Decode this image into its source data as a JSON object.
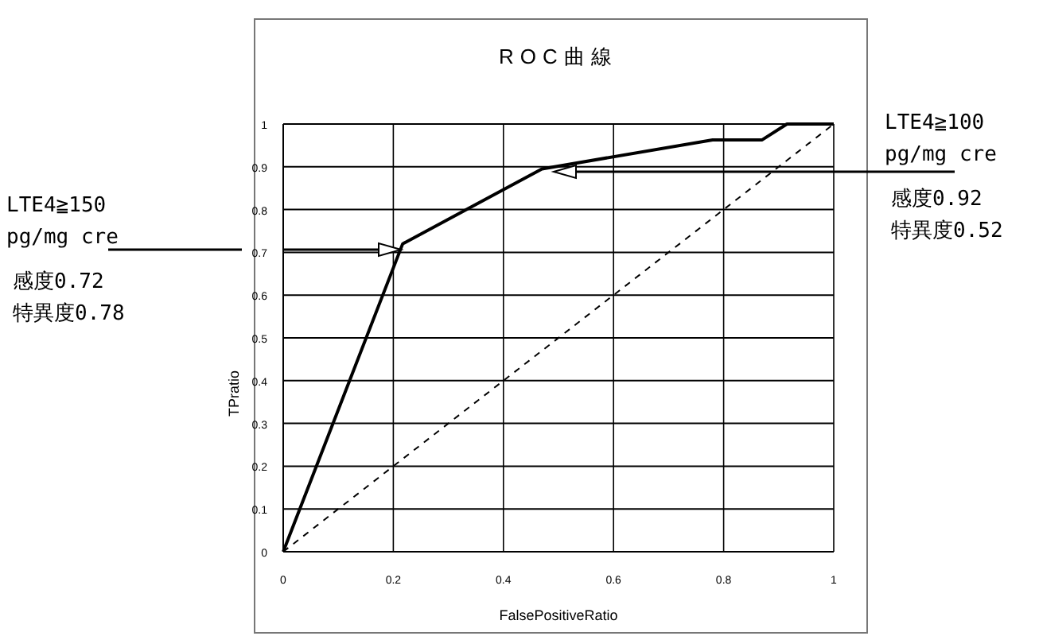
{
  "chart_data": {
    "type": "line",
    "title": "ROC曲線",
    "xlabel": "FalsePositiveRatio",
    "ylabel": "TPratio",
    "xlim": [
      0,
      1
    ],
    "ylim": [
      0,
      1
    ],
    "xticks": [
      0,
      0.2,
      0.4,
      0.6,
      0.8,
      1
    ],
    "yticks": [
      0,
      0.1,
      0.2,
      0.3,
      0.4,
      0.5,
      0.6,
      0.7,
      0.8,
      0.9,
      1
    ],
    "grid": true,
    "marker": "none",
    "series": [
      {
        "color": "#000000",
        "x": [
          0,
          0.217,
          0.47,
          0.78,
          0.87,
          0.915,
          1
        ],
        "values": [
          0,
          0.72,
          0.895,
          0.963,
          0.963,
          1,
          1
        ],
        "line_style": "solid"
      },
      {
        "color": "#000000",
        "x": [
          0,
          1
        ],
        "values": [
          0,
          1
        ],
        "line_style": "dashed"
      }
    ],
    "annotations": [
      "LTE4≧150\npg/mg cre\n感度0.72\n特異度0.78",
      "LTE4≧100\npg/mg cre\n感度0.92\n特異度0.52"
    ]
  }
}
